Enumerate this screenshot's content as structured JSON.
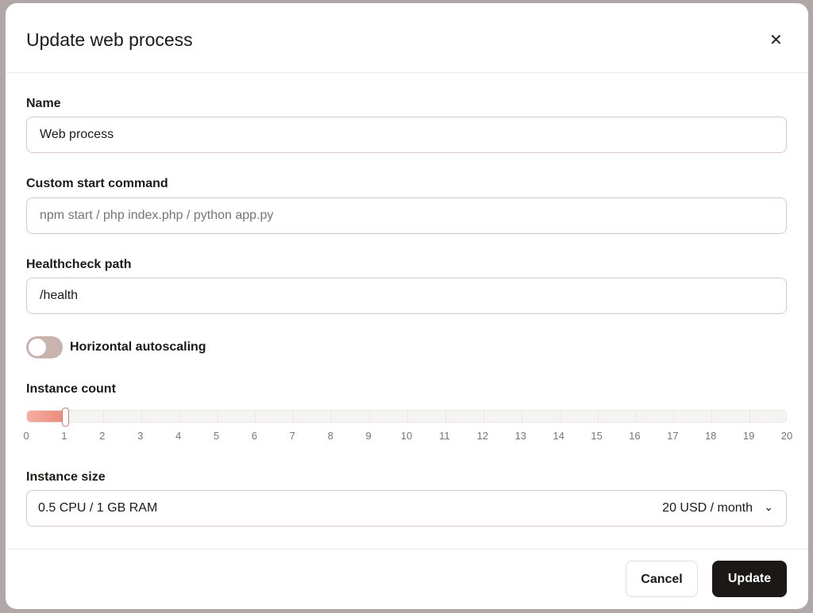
{
  "dialog": {
    "title": "Update web process",
    "close_icon": "close-icon"
  },
  "fields": {
    "name": {
      "label": "Name",
      "value": "Web process"
    },
    "start_command": {
      "label": "Custom start command",
      "value": "",
      "placeholder": "npm start / php index.php / python app.py"
    },
    "healthcheck": {
      "label": "Healthcheck path",
      "value": "/health"
    }
  },
  "autoscaling": {
    "label": "Horizontal autoscaling",
    "enabled": false
  },
  "instance_count": {
    "label": "Instance count",
    "value": 1,
    "min": 0,
    "max": 20,
    "ticks": [
      "0",
      "1",
      "2",
      "3",
      "4",
      "5",
      "6",
      "7",
      "8",
      "9",
      "10",
      "11",
      "12",
      "13",
      "14",
      "15",
      "16",
      "17",
      "18",
      "19",
      "20"
    ],
    "fill_color": "#f0a08f"
  },
  "instance_size": {
    "label": "Instance size",
    "selected": "0.5 CPU / 1 GB RAM",
    "price": "20 USD / month"
  },
  "footer": {
    "cancel": "Cancel",
    "update": "Update"
  }
}
